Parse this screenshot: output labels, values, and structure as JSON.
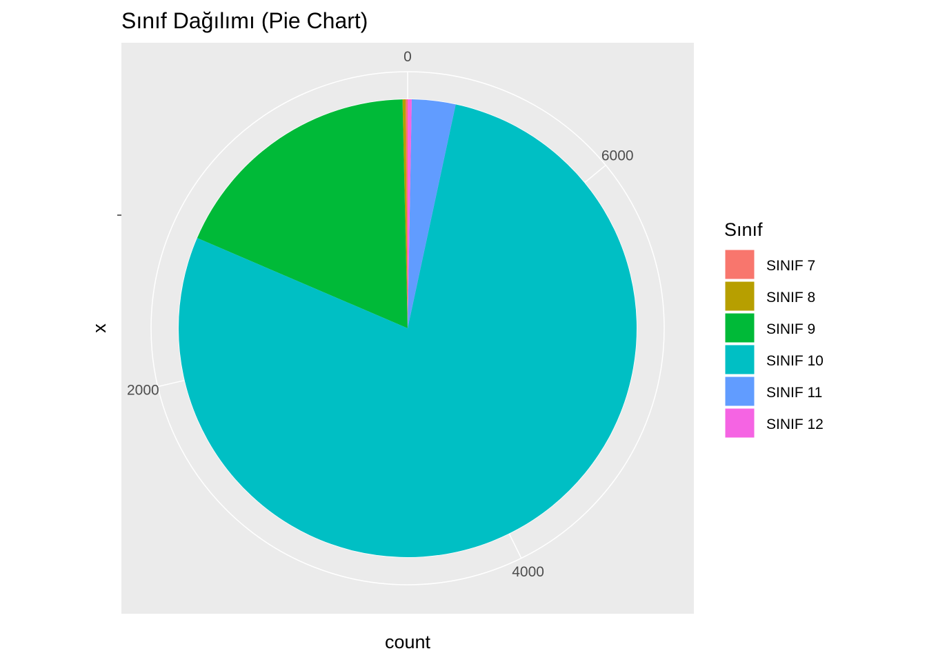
{
  "chart_data": {
    "type": "pie",
    "title": "Sınıf Dağılımı (Pie Chart)",
    "xlabel": "count",
    "ylabel": "x",
    "legend": {
      "title": "Sınıf",
      "position": "right"
    },
    "categories": [
      "SINIF 7",
      "SINIF 8",
      "SINIF 9",
      "SINIF 10",
      "SINIF 11",
      "SINIF 12"
    ],
    "values": [
      10,
      15,
      1270,
      5450,
      215,
      20
    ],
    "colors": [
      "#F8766D",
      "#B79F00",
      "#00BA38",
      "#00BFC4",
      "#619CFF",
      "#F564E3"
    ],
    "angular_ticks": [
      "0",
      "2000",
      "4000",
      "6000"
    ],
    "angular_tick_values": [
      0,
      2000,
      4000,
      6000
    ],
    "panel_background": "#EBEBEB",
    "grid": true
  }
}
